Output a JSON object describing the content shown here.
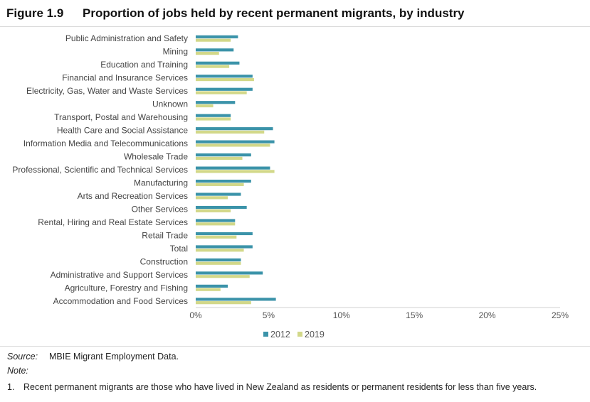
{
  "figure": {
    "number": "Figure 1.9",
    "title": "Proportion of jobs held by recent permanent migrants, by industry"
  },
  "chart_data": {
    "type": "bar",
    "orientation": "horizontal",
    "categories": [
      "Public Administration and Safety",
      "Mining",
      "Education and Training",
      "Financial and Insurance Services",
      "Electricity, Gas, Water and Waste Services",
      "Unknown",
      "Transport, Postal and Warehousing",
      "Health Care and Social Assistance",
      "Information Media and Telecommunications",
      "Wholesale Trade",
      "Professional, Scientific and Technical Services",
      "Manufacturing",
      "Arts and Recreation Services",
      "Other Services",
      "Rental, Hiring and Real Estate Services",
      "Retail Trade",
      "Total",
      "Construction",
      "Administrative and Support Services",
      "Agriculture, Forestry and Fishing",
      "Accommodation and Food Services"
    ],
    "series": [
      {
        "name": "2012",
        "color": "#3b93a9",
        "values": [
          2.9,
          2.6,
          3.0,
          3.9,
          3.9,
          2.7,
          2.4,
          5.3,
          5.4,
          3.8,
          5.1,
          3.8,
          3.1,
          3.5,
          2.7,
          3.9,
          3.9,
          3.1,
          4.6,
          2.2,
          5.5
        ]
      },
      {
        "name": "2019",
        "color": "#d2d889",
        "values": [
          2.4,
          1.6,
          2.3,
          4.0,
          3.5,
          1.2,
          2.4,
          4.7,
          5.1,
          3.2,
          5.4,
          3.3,
          2.2,
          2.4,
          2.7,
          2.8,
          3.3,
          3.1,
          3.7,
          1.7,
          3.8
        ]
      }
    ],
    "xlim": [
      0,
      25
    ],
    "xticks": [
      "0%",
      "5%",
      "10%",
      "15%",
      "20%",
      "25%"
    ],
    "xlabel": "",
    "ylabel": "",
    "grid": false,
    "legend_position": "bottom-center"
  },
  "source": {
    "label": "Source:",
    "text": "MBIE Migrant Employment Data."
  },
  "note": {
    "label": "Note:",
    "number": "1.",
    "text": "Recent permanent migrants are those who have lived in New Zealand as residents or permanent residents for less than five years."
  }
}
